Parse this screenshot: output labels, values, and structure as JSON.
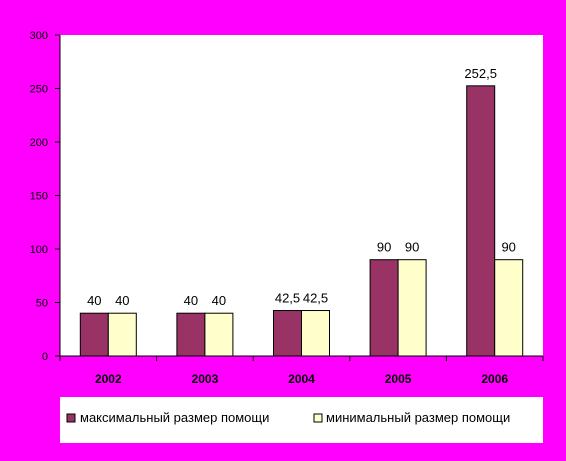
{
  "colors": {
    "background": "#ff00ff",
    "plot_area": "#ffffff",
    "series_max": "#993366",
    "series_min": "#ffffcc"
  },
  "chart_data": {
    "type": "bar",
    "categories": [
      "2002",
      "2003",
      "2004",
      "2005",
      "2006"
    ],
    "series": [
      {
        "name": "максимальный размер помощи",
        "values": [
          40,
          40,
          42.5,
          90,
          252.5
        ],
        "labels": [
          "40",
          "40",
          "42,5",
          "90",
          "252,5"
        ]
      },
      {
        "name": "минимальный размер помощи",
        "values": [
          40,
          40,
          42.5,
          90,
          90
        ],
        "labels": [
          "40",
          "40",
          "42,5",
          "90",
          "90"
        ]
      }
    ],
    "y_ticks": [
      "0",
      "50",
      "100",
      "150",
      "200",
      "250",
      "300"
    ],
    "ylim": [
      0,
      300
    ],
    "grid": false,
    "legend_position": "bottom"
  }
}
